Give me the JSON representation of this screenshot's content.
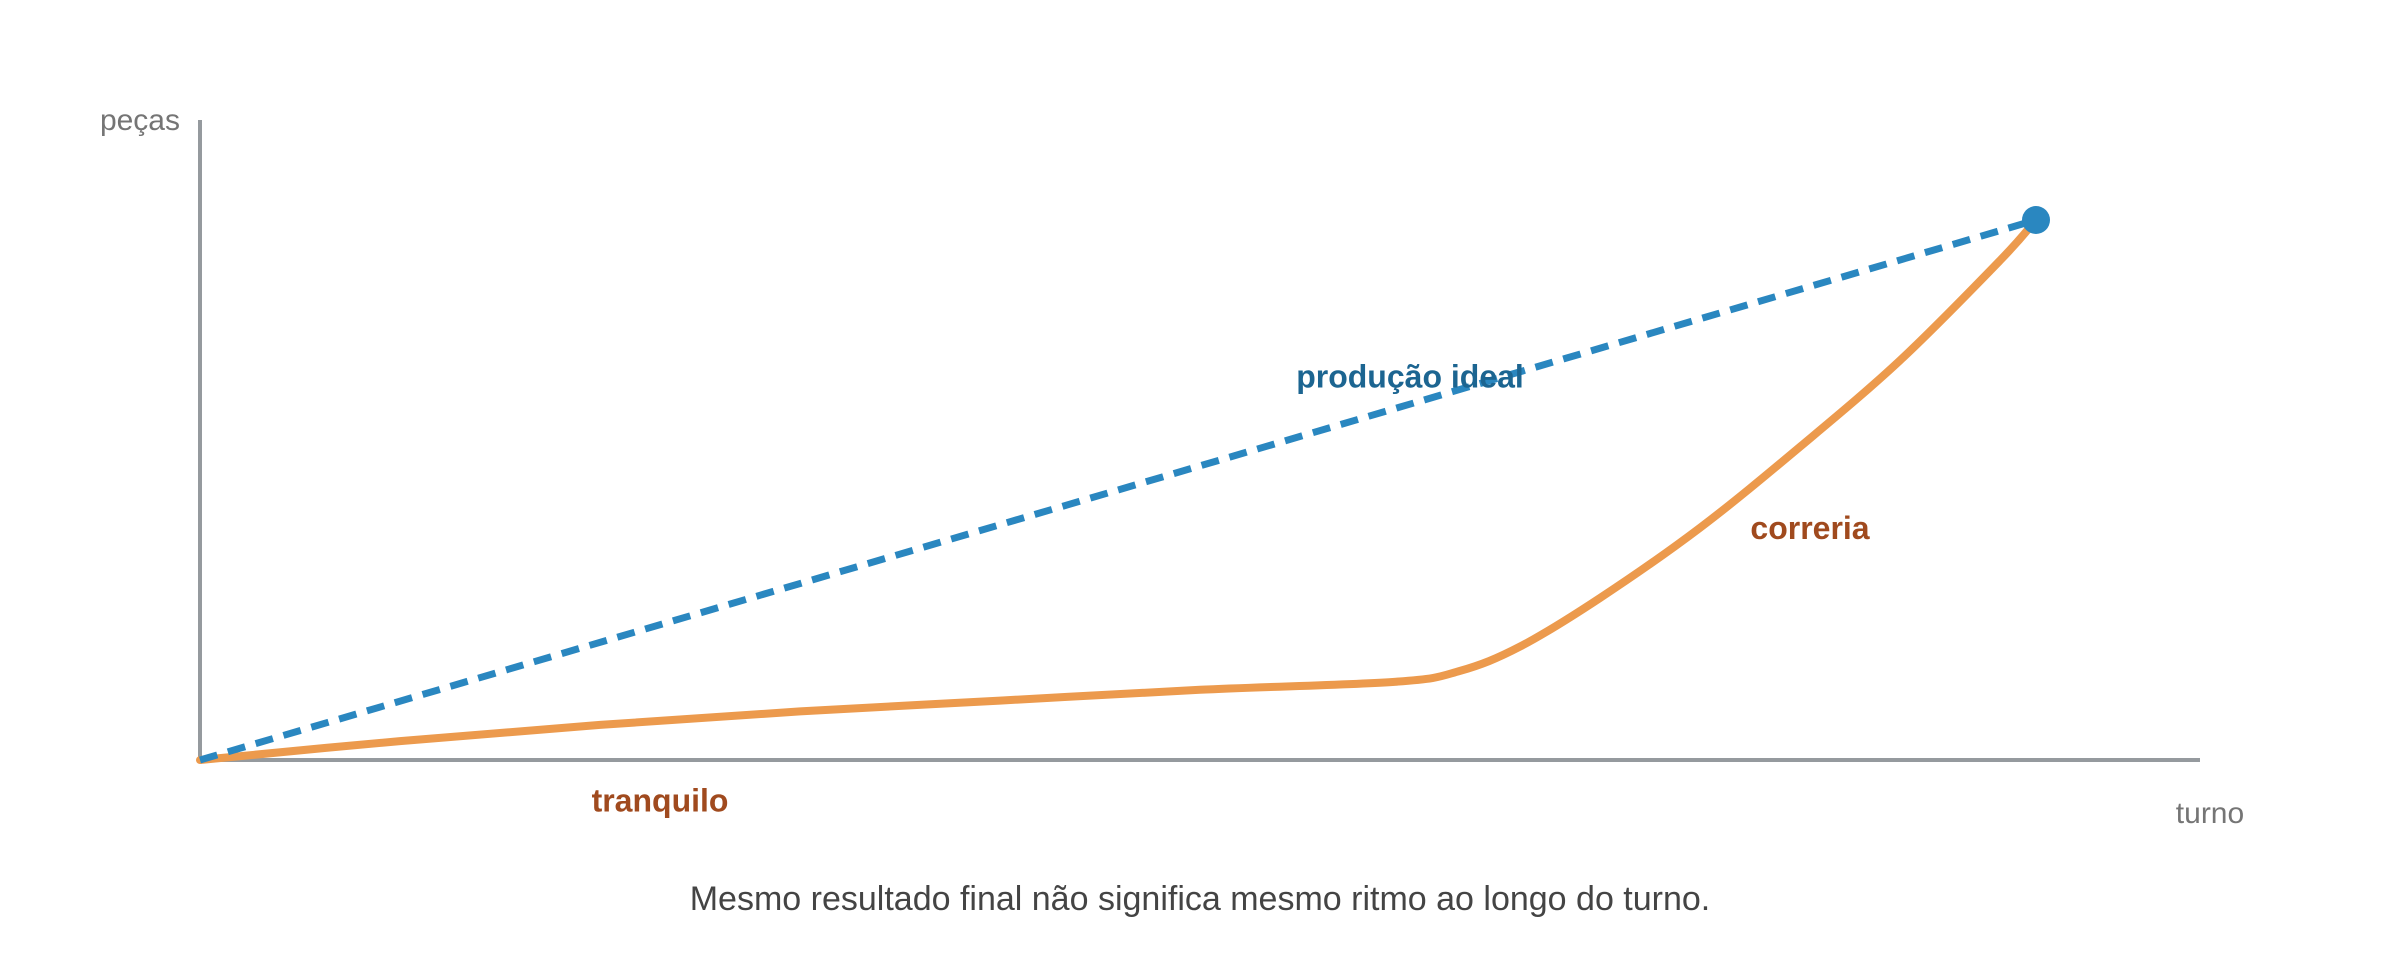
{
  "chart_data": {
    "type": "line",
    "title": "",
    "xlabel": "turno",
    "ylabel": "peças",
    "caption": "Mesmo resultado final não significa mesmo ritmo ao longo do turno.",
    "xlim": [
      0,
      1
    ],
    "ylim": [
      0,
      1.19
    ],
    "grid": false,
    "legend": "none",
    "tick_labels": {
      "x": [],
      "y": []
    },
    "series": [
      {
        "name": "produção ideal",
        "style": "dashed",
        "color": "#2a87c0",
        "label_color": "#1c6591",
        "x": [
          0,
          0.918
        ],
        "y": [
          0,
          1.0
        ]
      },
      {
        "name": "",
        "style": "solid",
        "color": "#ec9a4d",
        "x": [
          0,
          0.1,
          0.2,
          0.3,
          0.4,
          0.5,
          0.598,
          0.63,
          0.66,
          0.7,
          0.75,
          0.8,
          0.85,
          0.9,
          0.918
        ],
        "y": [
          0,
          0.035,
          0.065,
          0.09,
          0.11,
          0.13,
          0.145,
          0.165,
          0.21,
          0.3,
          0.43,
          0.58,
          0.74,
          0.925,
          1.0
        ]
      }
    ],
    "annotations": [
      {
        "id": "ideal",
        "text": "produção ideal",
        "x": 0.605,
        "y": 0.71,
        "color": "#1c6591"
      },
      {
        "id": "rush",
        "text": "correria",
        "x": 0.805,
        "y": 0.43,
        "color": "#a04a1e"
      },
      {
        "id": "calm",
        "text": "tranquilo",
        "x": 0.23,
        "y": -0.075,
        "color": "#a04a1e"
      }
    ],
    "end_marker": {
      "x": 0.918,
      "y": 1.0,
      "color": "#2a87c0"
    },
    "axis_color": "#959a9e"
  }
}
